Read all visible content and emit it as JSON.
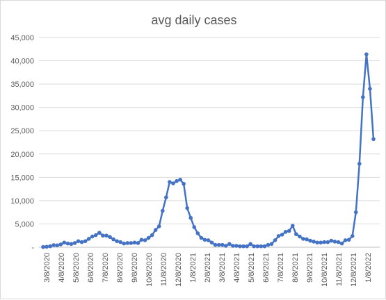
{
  "chart_data": {
    "type": "line",
    "title": "avg daily cases",
    "xlabel": "",
    "ylabel": "",
    "ylim": [
      0,
      45000
    ],
    "yticks": [
      "-",
      "5,000",
      "10,000",
      "15,000",
      "20,000",
      "25,000",
      "30,000",
      "35,000",
      "40,000",
      "45,000"
    ],
    "grid": true,
    "legend": "none",
    "color": "#4472c4",
    "x_tick_labels": [
      "3/8/2020",
      "4/8/2020",
      "5/8/2020",
      "6/8/2020",
      "7/8/2020",
      "8/8/2020",
      "9/8/2020",
      "10/8/2020",
      "11/8/2020",
      "12/8/2020",
      "1/8/2021",
      "2/8/2021",
      "3/8/2021",
      "4/8/2021",
      "5/8/2021",
      "6/8/2021",
      "7/8/2021",
      "8/8/2021",
      "9/8/2021",
      "10/8/2021",
      "11/8/2021",
      "12/8/2021",
      "1/8/2022"
    ],
    "series": [
      {
        "values": [
          50,
          100,
          200,
          450,
          400,
          600,
          1000,
          800,
          700,
          900,
          1300,
          1100,
          1300,
          1800,
          2300,
          2600,
          3100,
          2500,
          2500,
          2200,
          1700,
          1300,
          1100,
          800,
          900,
          900,
          1000,
          900,
          1600,
          1500,
          2000,
          2600,
          3700,
          4500,
          7800,
          10700,
          14000,
          13700,
          14200,
          14500,
          13600,
          8400,
          6300,
          4300,
          3000,
          2000,
          1600,
          1500,
          1000,
          500,
          500,
          500,
          300,
          700,
          300,
          300,
          200,
          200,
          200,
          700,
          200,
          200,
          200,
          200,
          500,
          700,
          1500,
          2400,
          2700,
          3300,
          3500,
          4600,
          2800,
          2300,
          1800,
          1700,
          1400,
          1200,
          1000,
          1000,
          1100,
          1100,
          1400,
          1200,
          1100,
          800,
          1500,
          1600,
          2400,
          7500,
          17900,
          32200,
          41400,
          34000,
          23200
        ]
      }
    ]
  }
}
